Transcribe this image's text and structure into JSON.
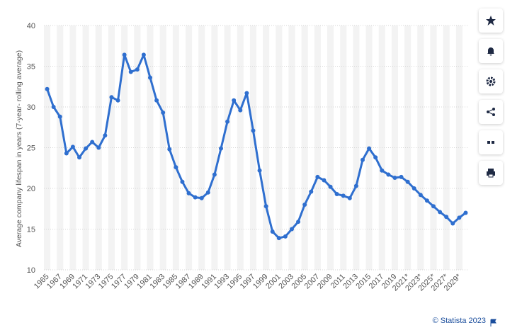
{
  "chart_data": {
    "type": "line",
    "y_label": "Average company lifespan in years (7-year- rolling average)",
    "credit": "© Statista 2023",
    "categories": [
      "1965",
      null,
      "1967",
      null,
      "1969",
      null,
      "1971",
      null,
      "1973",
      null,
      "1975",
      null,
      "1977",
      null,
      "1979",
      null,
      "1981",
      null,
      "1983",
      null,
      "1985",
      null,
      "1987",
      null,
      "1989",
      null,
      "1991",
      null,
      "1993",
      null,
      "1995",
      null,
      "1997",
      null,
      "1999",
      null,
      "2001",
      null,
      "2003",
      null,
      "2005",
      null,
      "2007",
      null,
      "2009",
      null,
      "2011",
      null,
      "2013",
      null,
      "2015",
      null,
      "2017",
      null,
      "2019",
      null,
      "2021*",
      null,
      "2023*",
      null,
      "2025*",
      null,
      "2027*",
      null,
      "2029*",
      null
    ],
    "values": [
      32.2,
      30.0,
      28.8,
      24.3,
      25.1,
      23.8,
      24.9,
      25.7,
      25.0,
      26.5,
      31.2,
      30.8,
      36.4,
      34.3,
      34.6,
      36.4,
      33.6,
      30.8,
      29.3,
      24.8,
      22.6,
      20.8,
      19.4,
      18.9,
      18.8,
      19.5,
      21.7,
      24.9,
      28.2,
      30.8,
      29.6,
      31.7,
      27.1,
      22.2,
      17.8,
      14.7,
      13.9,
      14.1,
      15.0,
      15.9,
      18.0,
      19.6,
      21.4,
      21.0,
      20.2,
      19.3,
      19.1,
      18.8,
      20.3,
      23.5,
      24.9,
      23.8,
      22.2,
      21.7,
      21.3,
      21.4,
      20.8,
      20.0,
      19.2,
      18.5,
      17.8,
      17.1,
      16.5,
      15.7,
      16.4,
      17.0
    ],
    "color": "#2f6fcf",
    "ylim": [
      10,
      40
    ],
    "yticks": [
      10,
      15,
      20,
      25,
      30,
      35,
      40
    ],
    "grid": true
  }
}
